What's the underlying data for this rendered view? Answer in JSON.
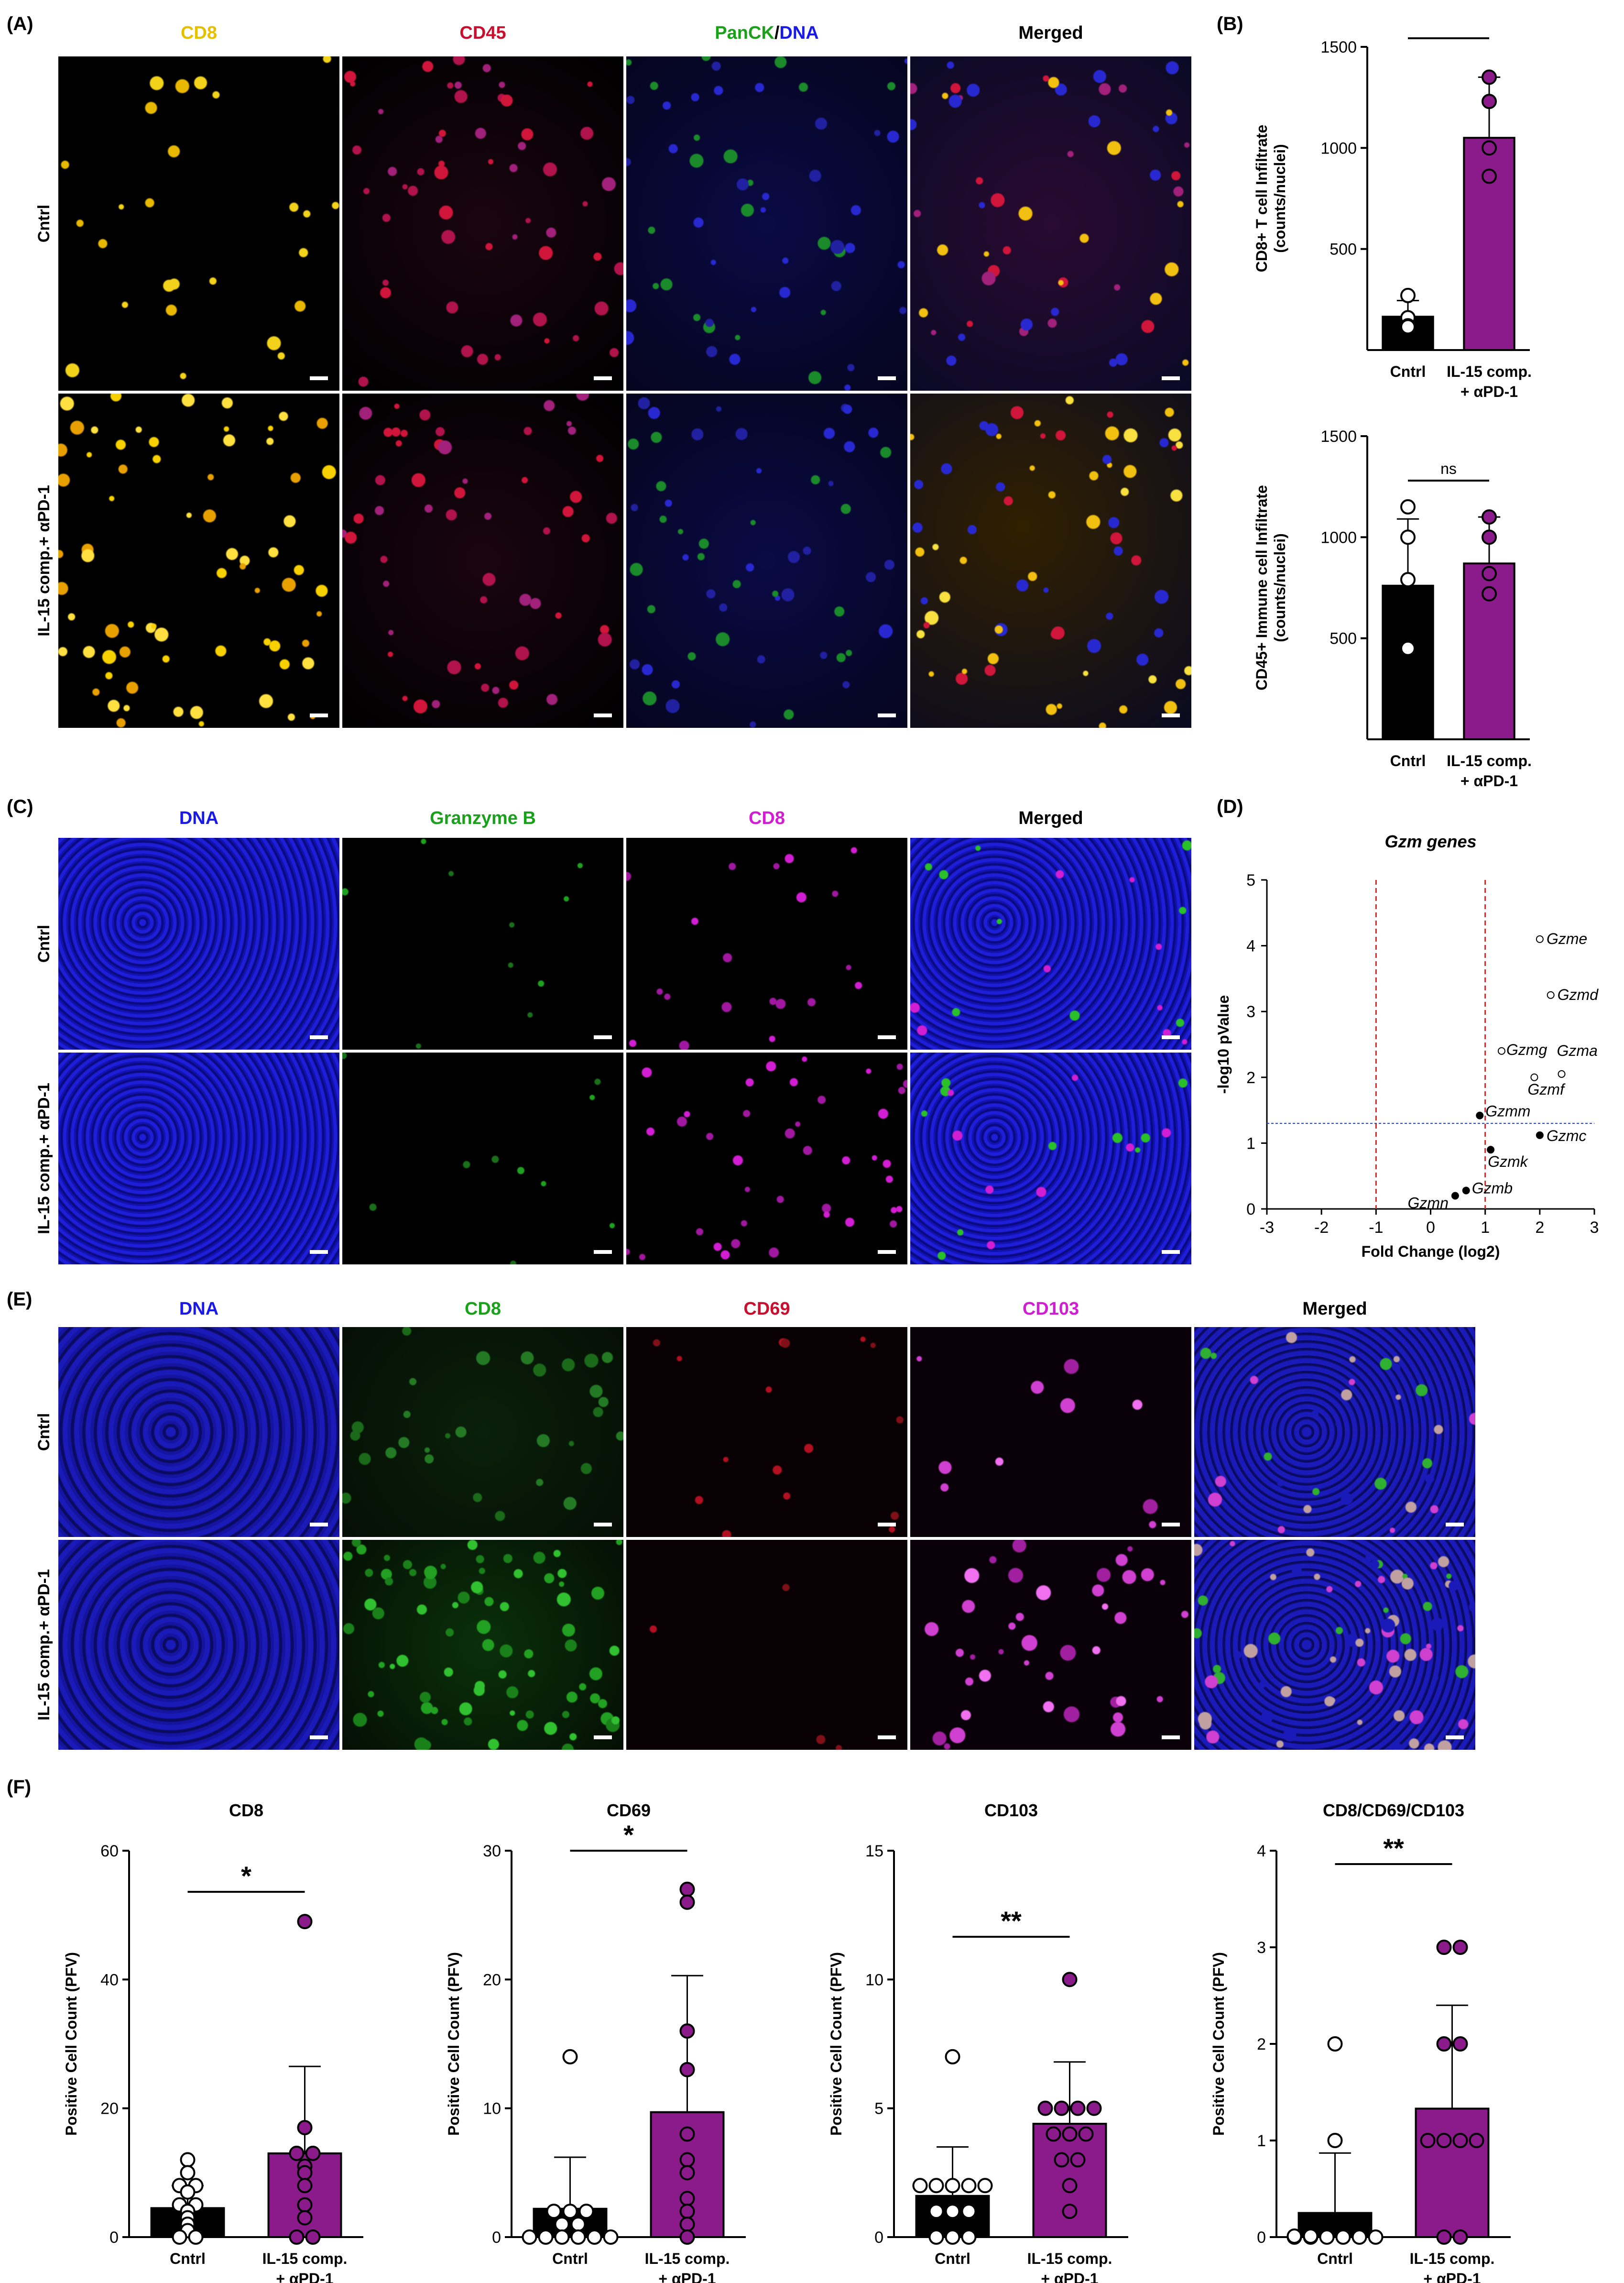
{
  "panels": {
    "A": {
      "label": "(A)",
      "channels": [
        "CD8",
        "CD45",
        "PanCK/DNA",
        "Merged"
      ],
      "channel_colors": [
        "#e6c000",
        "#c8102e",
        "#1aa01a",
        "#000000"
      ],
      "rows": [
        "Cntrl",
        "IL-15 comp.+ αPD-1"
      ]
    },
    "B": {
      "label": "(B)"
    },
    "C": {
      "label": "(C)",
      "channels": [
        "DNA",
        "Granzyme B",
        "CD8",
        "Merged"
      ],
      "channel_colors": [
        "#1a1ae6",
        "#1aa01a",
        "#d21ed2",
        "#000000"
      ],
      "rows": [
        "Cntrl",
        "IL-15 comp.+ αPD-1"
      ]
    },
    "D": {
      "label": "(D)"
    },
    "E": {
      "label": "(E)",
      "channels": [
        "DNA",
        "CD8",
        "CD69",
        "CD103",
        "Merged"
      ],
      "channel_colors": [
        "#1a1ae6",
        "#1aa01a",
        "#c8102e",
        "#d21ed2",
        "#000000"
      ],
      "rows": [
        "Cntrl",
        "IL-15 comp.+ αPD-1"
      ]
    },
    "F": {
      "label": "(F)"
    }
  },
  "chart_data": [
    {
      "id": "B-top",
      "type": "bar",
      "categories": [
        "Cntrl",
        "IL-15 comp.\n+ αPD-1"
      ],
      "values": [
        165,
        1050
      ],
      "errors": [
        80,
        300
      ],
      "points": [
        [
          270,
          160,
          120,
          115
        ],
        [
          1350,
          1230,
          1000,
          860
        ]
      ],
      "colors": [
        "#000000",
        "#8b1a8b"
      ],
      "point_fill": [
        "#ffffff",
        "#8b1a8b"
      ],
      "ylabel": "CD8+ T cell Infiltrate\n(counts/nuclei)",
      "ylim": [
        0,
        1500
      ],
      "yticks": [
        500,
        1000,
        1500
      ],
      "significance": "**"
    },
    {
      "id": "B-bottom",
      "type": "bar",
      "categories": [
        "Cntrl",
        "IL-15 comp.\n+ αPD-1"
      ],
      "values": [
        760,
        870
      ],
      "errors": [
        330,
        230
      ],
      "points": [
        [
          1150,
          1000,
          790,
          450
        ],
        [
          1100,
          1000,
          820,
          720
        ]
      ],
      "colors": [
        "#000000",
        "#8b1a8b"
      ],
      "point_fill": [
        "#ffffff",
        "#8b1a8b"
      ],
      "ylabel": "CD45+ Immune cell Infiltrate\n(counts/nuclei)",
      "ylim": [
        0,
        1500
      ],
      "yticks": [
        500,
        1000,
        1500
      ],
      "significance": "ns"
    },
    {
      "id": "D",
      "type": "scatter",
      "title": "Gzm genes",
      "xlabel": "Fold Change (log2)",
      "ylabel": "-log10 pValue",
      "xlim": [
        -3,
        3
      ],
      "ylim": [
        0,
        5
      ],
      "xticks": [
        -3,
        -2,
        -1,
        0,
        1,
        2,
        3
      ],
      "yticks": [
        0,
        1,
        2,
        3,
        4,
        5
      ],
      "points": [
        {
          "name": "Gzme",
          "x": 2.0,
          "y": 4.1,
          "open": true
        },
        {
          "name": "Gzmd",
          "x": 2.2,
          "y": 3.25,
          "open": true
        },
        {
          "name": "Gzmg",
          "x": 1.3,
          "y": 2.4,
          "open": true
        },
        {
          "name": "Gzma",
          "x": 2.4,
          "y": 2.05,
          "open": true
        },
        {
          "name": "Gzmf",
          "x": 1.9,
          "y": 2.0,
          "open": true
        },
        {
          "name": "Gzmm",
          "x": 0.9,
          "y": 1.42,
          "open": false
        },
        {
          "name": "Gzmc",
          "x": 2.0,
          "y": 1.12,
          "open": false
        },
        {
          "name": "Gzmk",
          "x": 1.1,
          "y": 0.9,
          "open": false
        },
        {
          "name": "Gzmb",
          "x": 0.65,
          "y": 0.28,
          "open": false
        },
        {
          "name": "Gzmn",
          "x": 0.45,
          "y": 0.2,
          "open": false
        }
      ],
      "vlines": [
        -1,
        1
      ],
      "hline": 1.3
    },
    {
      "id": "F-CD8",
      "type": "bar",
      "title": "CD8",
      "categories": [
        "Cntrl",
        "IL-15 comp.\n+ αPD-1"
      ],
      "values": [
        4.5,
        13
      ],
      "errors": [
        3.5,
        13.5
      ],
      "points": [
        [
          12,
          10,
          8,
          8,
          7,
          5,
          5,
          4,
          3,
          2,
          1,
          0,
          0
        ],
        [
          49,
          17,
          13,
          13,
          11,
          10,
          8,
          5,
          3,
          0,
          0
        ]
      ],
      "colors": [
        "#000000",
        "#8b1a8b"
      ],
      "point_fill": [
        "#ffffff",
        "#8b1a8b"
      ],
      "ylabel": "Positive Cell Count (PFV)",
      "ylim": [
        0,
        60
      ],
      "yticks": [
        0,
        20,
        40,
        60
      ],
      "significance": "*"
    },
    {
      "id": "F-CD69",
      "type": "bar",
      "title": "CD69",
      "categories": [
        "Cntrl",
        "IL-15 comp.\n+ αPD-1"
      ],
      "values": [
        2.2,
        9.7
      ],
      "errors": [
        4,
        10.6
      ],
      "points": [
        [
          14,
          2,
          2,
          2,
          1,
          1,
          0,
          0,
          0,
          0,
          0,
          0
        ],
        [
          27,
          26,
          16,
          13,
          8,
          6,
          5,
          3,
          2,
          1,
          0
        ]
      ],
      "colors": [
        "#000000",
        "#8b1a8b"
      ],
      "point_fill": [
        "#ffffff",
        "#8b1a8b"
      ],
      "ylabel": "Positive Cell Count (PFV)",
      "ylim": [
        0,
        30
      ],
      "yticks": [
        0,
        10,
        20,
        30
      ],
      "significance": "*"
    },
    {
      "id": "F-CD103",
      "type": "bar",
      "title": "CD103",
      "categories": [
        "Cntrl",
        "IL-15 comp.\n+ αPD-1"
      ],
      "values": [
        1.6,
        4.4
      ],
      "errors": [
        1.9,
        2.4
      ],
      "points": [
        [
          7,
          2,
          2,
          2,
          2,
          2,
          1,
          1,
          1,
          0,
          0,
          0
        ],
        [
          10,
          5,
          5,
          5,
          5,
          4,
          4,
          4,
          3,
          3,
          2,
          1
        ]
      ],
      "colors": [
        "#000000",
        "#8b1a8b"
      ],
      "point_fill": [
        "#ffffff",
        "#8b1a8b"
      ],
      "ylabel": "Positive Cell Count (PFV)",
      "ylim": [
        0,
        15
      ],
      "yticks": [
        0,
        5,
        10,
        15
      ],
      "significance": "**"
    },
    {
      "id": "F-CD8CD69CD103",
      "type": "bar",
      "title": "CD8/CD69/CD103",
      "categories": [
        "Cntrl",
        "IL-15 comp.\n+ αPD-1"
      ],
      "values": [
        0.25,
        1.33
      ],
      "errors": [
        0.62,
        1.07
      ],
      "points": [
        [
          2,
          1,
          0,
          0,
          0,
          0,
          0,
          0,
          0,
          0
        ],
        [
          3,
          3,
          2,
          2,
          1,
          1,
          1,
          1,
          0,
          0
        ]
      ],
      "colors": [
        "#000000",
        "#8b1a8b"
      ],
      "point_fill": [
        "#ffffff",
        "#8b1a8b"
      ],
      "ylabel": "Positive Cell Count (PFV)",
      "ylim": [
        0,
        4
      ],
      "yticks": [
        0,
        1,
        2,
        3,
        4
      ],
      "significance": "**"
    }
  ]
}
